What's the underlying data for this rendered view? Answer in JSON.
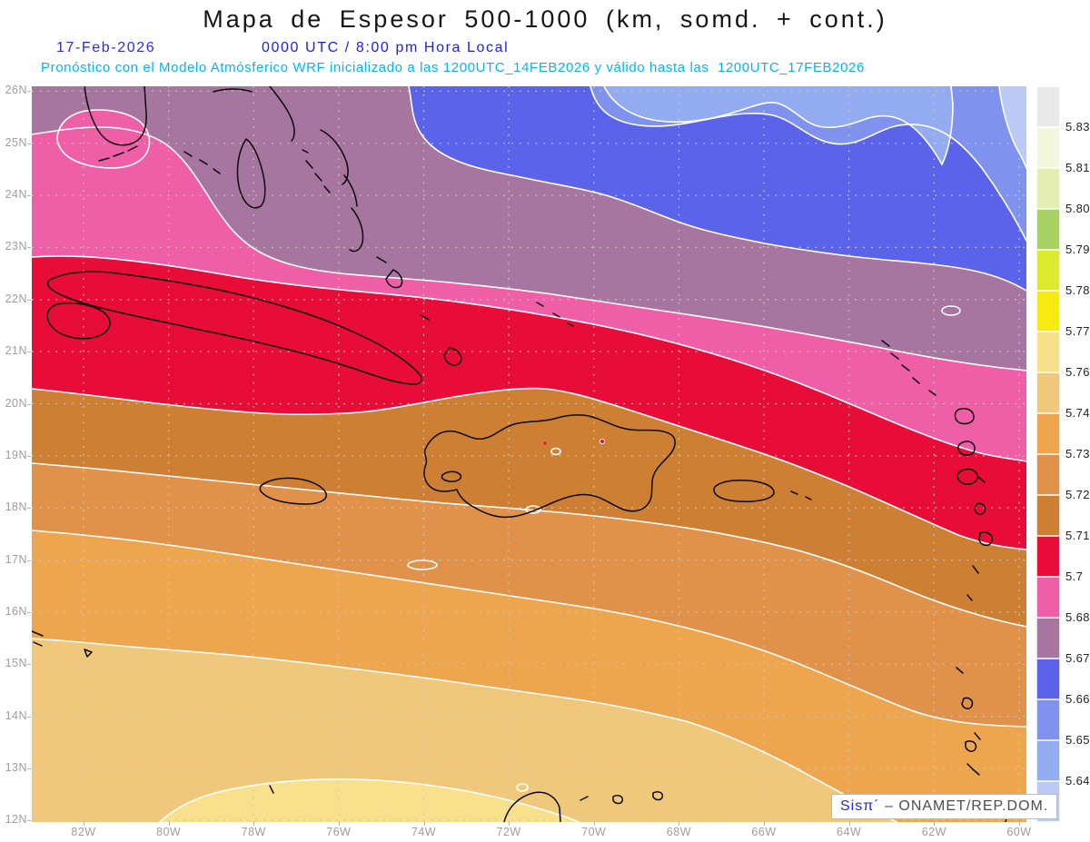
{
  "header": {
    "title": "Mapa de Espesor 500-1000 (km, somd. + cont.)",
    "date": "17-Feb-2026",
    "local_time": "0000 UTC / 8:00 pm Hora Local",
    "forecast": "Pronóstico con el Modelo Atmósferico WRF inicializado a las 1200UTC_14FEB2026 y válido hasta las  1200UTC_17FEB2026"
  },
  "attribution": {
    "logo": "Sisπ´",
    "rest": " –  ONAMET/REP.DOM."
  },
  "axes": {
    "lat_labels": [
      "26N",
      "25N",
      "24N",
      "23N",
      "22N",
      "21N",
      "20N",
      "19N",
      "18N",
      "17N",
      "16N",
      "15N",
      "14N",
      "13N",
      "12N"
    ],
    "lon_labels": [
      "82W",
      "80W",
      "78W",
      "76W",
      "74W",
      "72W",
      "70W",
      "68W",
      "66W",
      "64W",
      "62W",
      "60W"
    ]
  },
  "colorbar": {
    "levels": [
      "5.831",
      "5.819",
      "5.807",
      "5.795",
      "5.783",
      "5.772",
      "5.76",
      "5.748",
      "5.736",
      "5.724",
      "5.712",
      "5.7",
      "5.688",
      "5.676",
      "5.664",
      "5.652",
      "5.64"
    ],
    "colors": [
      "#e9e9e9",
      "#f3f6da",
      "#e3efb0",
      "#a7d162",
      "#dcea2e",
      "#f8ea10",
      "#f8df8c",
      "#f0c87c",
      "#eda54e",
      "#e0914a",
      "#cd8034",
      "#e80c39",
      "#ee5fa7",
      "#a675a0",
      "#5a63e9",
      "#7f93ee",
      "#93abf0",
      "#bac9f6"
    ]
  },
  "map_colors": {
    "tan": "#f0c87c",
    "wheat": "#f8e08c",
    "light_orange": "#eda54e",
    "orange": "#e0914a",
    "dark_orange": "#cd8034",
    "red": "#e80c39",
    "pink": "#ee5fa7",
    "mauve": "#a675a0",
    "blue_vivid": "#5a63e9",
    "blue_medium": "#7f93ee",
    "blue_light": "#93abf0",
    "blue_pale": "#bac9f6",
    "contour": "#ffffff",
    "coast": "#0a0a0a",
    "grid": "#c9c9bf",
    "spot_red": "#e80c39"
  },
  "chart_data": {
    "type": "heatmap",
    "title": "Mapa de Espesor 500-1000 (km, somd. + cont.)",
    "subtitle": "17-Feb-2026 0000 UTC / 8:00 pm Hora Local",
    "model": "WRF inicializado 1200UTC_14FEB2026, válido hasta 1200UTC_17FEB2026",
    "x_ticks": [
      "82W",
      "80W",
      "78W",
      "76W",
      "74W",
      "72W",
      "70W",
      "68W",
      "66W",
      "64W",
      "62W",
      "60W"
    ],
    "y_ticks": [
      "26N",
      "25N",
      "24N",
      "23N",
      "22N",
      "21N",
      "20N",
      "19N",
      "18N",
      "17N",
      "16N",
      "15N",
      "14N",
      "13N",
      "12N"
    ],
    "legend_position": "right",
    "grid": true,
    "legend_levels": [
      5.831,
      5.819,
      5.807,
      5.795,
      5.783,
      5.772,
      5.76,
      5.748,
      5.736,
      5.724,
      5.712,
      5.7,
      5.688,
      5.676,
      5.664,
      5.652,
      5.64
    ],
    "legend_colors_top_to_bottom": [
      "#e9e9e9",
      "#f3f6da",
      "#e3efb0",
      "#a7d162",
      "#dcea2e",
      "#f8ea10",
      "#f8df8c",
      "#f0c87c",
      "#eda54e",
      "#e0914a",
      "#cd8034",
      "#e80c39",
      "#ee5fa7",
      "#a675a0",
      "#5a63e9",
      "#7f93ee",
      "#93abf0",
      "#bac9f6"
    ],
    "bands_north_to_south": [
      {
        "range": "< 5.64",
        "color": "#bac9f6",
        "location": "extreme NE corner"
      },
      {
        "range": "5.64–5.652",
        "color": "#93abf0",
        "location": "pockets along northern edge"
      },
      {
        "range": "5.652–5.664",
        "color": "#7f93ee",
        "location": "upper right region"
      },
      {
        "range": "5.664–5.676",
        "color": "#5a63e9",
        "location": "band across the north"
      },
      {
        "range": "5.676–5.688",
        "color": "#a675a0",
        "location": "band over Bahamas / top-left"
      },
      {
        "range": "5.688–5.7",
        "color": "#ee5fa7",
        "location": "band over north Cuba / Florida"
      },
      {
        "range": "5.7–5.712",
        "color": "#e80c39",
        "location": "band over Cuba to Puerto Rico"
      },
      {
        "range": "5.712–5.724",
        "color": "#cd8034",
        "location": "band over Hispaniola north"
      },
      {
        "range": "5.724–5.736",
        "color": "#e0914a",
        "location": "band over Hispaniola south / Jamaica"
      },
      {
        "range": "5.736–5.748",
        "color": "#eda54e",
        "location": "central Caribbean band"
      },
      {
        "range": "5.748–5.76",
        "color": "#f0c87c",
        "location": "southern Caribbean band"
      },
      {
        "range": "5.76–5.772",
        "color": "#f8e08c",
        "location": "SW corner wedge"
      }
    ]
  }
}
